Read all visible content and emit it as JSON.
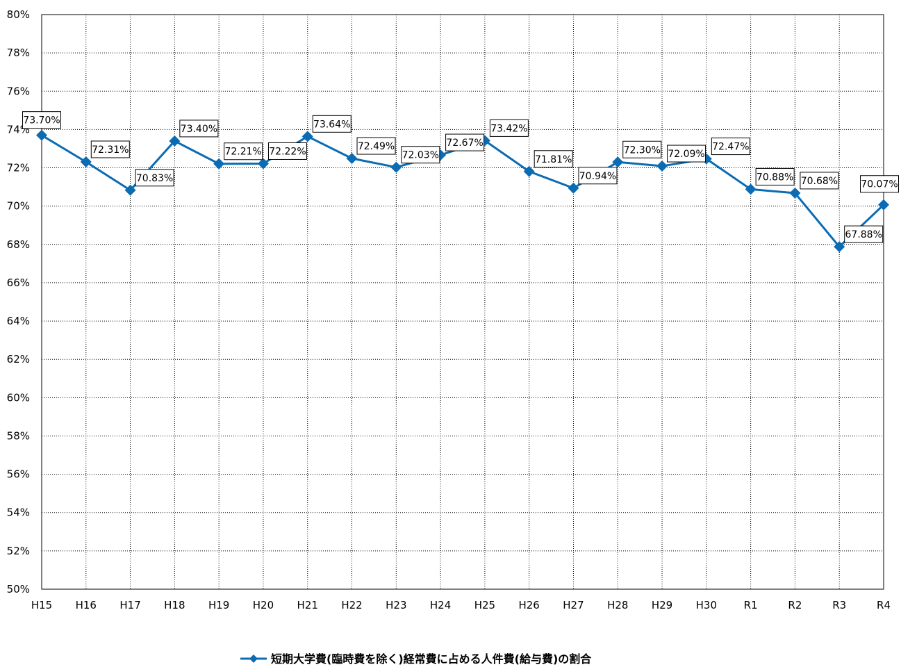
{
  "chart_data": {
    "type": "line",
    "categories": [
      "H15",
      "H16",
      "H17",
      "H18",
      "H19",
      "H20",
      "H21",
      "H22",
      "H23",
      "H24",
      "H25",
      "H26",
      "H27",
      "H28",
      "H29",
      "H30",
      "R1",
      "R2",
      "R3",
      "R4"
    ],
    "series": [
      {
        "name": "短期大学費(臨時費を除く)経常費に占める人件費(給与費)の割合",
        "values": [
          73.7,
          72.31,
          70.83,
          73.4,
          72.21,
          72.22,
          73.64,
          72.49,
          72.03,
          72.67,
          73.42,
          71.81,
          70.94,
          72.3,
          72.09,
          72.47,
          70.88,
          70.68,
          67.88,
          70.07
        ],
        "data_labels": [
          "73.70%",
          "72.31%",
          "70.83%",
          "73.40%",
          "72.21%",
          "72.22%",
          "73.64%",
          "72.49%",
          "72.03%",
          "72.67%",
          "73.42%",
          "71.81%",
          "70.94%",
          "72.30%",
          "72.09%",
          "72.47%",
          "70.88%",
          "70.68%",
          "67.88%",
          "70.07%"
        ],
        "color": "#0b6bb3",
        "marker": "diamond"
      }
    ],
    "ylim": [
      50,
      80
    ],
    "ytick_step": 2,
    "ytick_labels": [
      "50%",
      "52%",
      "54%",
      "56%",
      "58%",
      "60%",
      "62%",
      "64%",
      "66%",
      "68%",
      "70%",
      "72%",
      "74%",
      "76%",
      "78%",
      "80%"
    ],
    "grid": true,
    "legend_position": "bottom-center"
  }
}
